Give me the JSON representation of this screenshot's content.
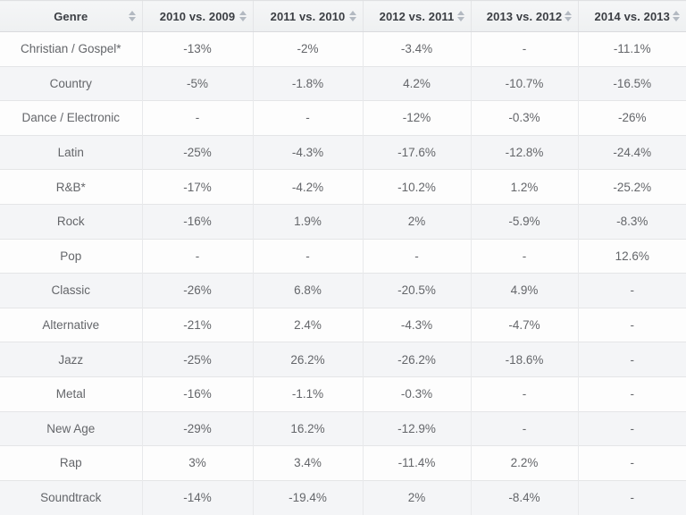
{
  "table": {
    "columns": [
      {
        "id": "genre",
        "label": "Genre",
        "sortable": true
      },
      {
        "id": "2010-vs-2009",
        "label": "2010 vs. 2009",
        "sortable": true
      },
      {
        "id": "2011-vs-2010",
        "label": "2011 vs. 2010",
        "sortable": true
      },
      {
        "id": "2012-vs-2011",
        "label": "2012 vs. 2011",
        "sortable": true
      },
      {
        "id": "2013-vs-2012",
        "label": "2013 vs. 2012",
        "sortable": true
      },
      {
        "id": "2014-vs-2013",
        "label": "2014 vs. 2013",
        "sortable": true
      }
    ],
    "rows": [
      {
        "genre": "Christian / Gospel*",
        "values": [
          "-13%",
          "-2%",
          "-3.4%",
          "-",
          "-11.1%"
        ]
      },
      {
        "genre": "Country",
        "values": [
          "-5%",
          "-1.8%",
          "4.2%",
          "-10.7%",
          "-16.5%"
        ]
      },
      {
        "genre": "Dance / Electronic",
        "values": [
          "-",
          "-",
          "-12%",
          "-0.3%",
          "-26%"
        ]
      },
      {
        "genre": "Latin",
        "values": [
          "-25%",
          "-4.3%",
          "-17.6%",
          "-12.8%",
          "-24.4%"
        ]
      },
      {
        "genre": "R&B*",
        "values": [
          "-17%",
          "-4.2%",
          "-10.2%",
          "1.2%",
          "-25.2%"
        ]
      },
      {
        "genre": "Rock",
        "values": [
          "-16%",
          "1.9%",
          "2%",
          "-5.9%",
          "-8.3%"
        ]
      },
      {
        "genre": "Pop",
        "values": [
          "-",
          "-",
          "-",
          "-",
          "12.6%"
        ]
      },
      {
        "genre": "Classic",
        "values": [
          "-26%",
          "6.8%",
          "-20.5%",
          "4.9%",
          "-"
        ]
      },
      {
        "genre": "Alternative",
        "values": [
          "-21%",
          "2.4%",
          "-4.3%",
          "-4.7%",
          "-"
        ]
      },
      {
        "genre": "Jazz",
        "values": [
          "-25%",
          "26.2%",
          "-26.2%",
          "-18.6%",
          "-"
        ]
      },
      {
        "genre": "Metal",
        "values": [
          "-16%",
          "-1.1%",
          "-0.3%",
          "-",
          "-"
        ]
      },
      {
        "genre": "New Age",
        "values": [
          "-29%",
          "16.2%",
          "-12.9%",
          "-",
          "-"
        ]
      },
      {
        "genre": "Rap",
        "values": [
          "3%",
          "3.4%",
          "-11.4%",
          "2.2%",
          "-"
        ]
      },
      {
        "genre": "Soundtrack",
        "values": [
          "-14%",
          "-19.4%",
          "2%",
          "-8.4%",
          "-"
        ]
      }
    ]
  },
  "icons": {
    "sort": "sort-arrows-icon"
  },
  "colors": {
    "header_bg_top": "#f5f6f7",
    "header_bg_bottom": "#eef0f1",
    "header_text": "#3b3e43",
    "row_bg": "#fdfdfd",
    "row_bg_striped": "#f4f5f7",
    "cell_text": "#64666a",
    "border": "#e4e5e7",
    "sort_icon": "#b3b9c1"
  }
}
